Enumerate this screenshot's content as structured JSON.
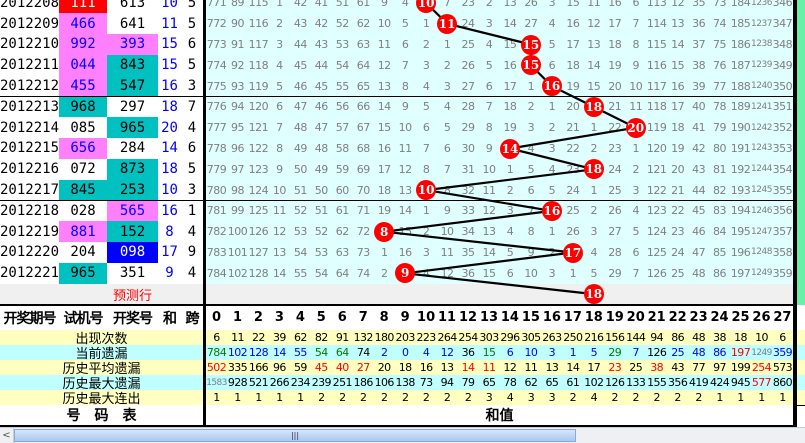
{
  "colors": {
    "red": "#ff0000",
    "pink": "#ff80ff",
    "teal": "#00c0c0",
    "blue": "#0000ff",
    "grid_bg": "#e0ffff",
    "stat_yellow": "#ffffc0",
    "stat_cyan": "#c0ffff",
    "ball": "#ff0000",
    "side_green": "#66f0a8"
  },
  "rows": [
    {
      "period": "2012208",
      "trial": "111",
      "trial_bg": "red",
      "draw": "613",
      "draw_bg": "white",
      "sum": "10",
      "span": "5",
      "grid": [
        "771",
        "89",
        "115",
        "1",
        "42",
        "41",
        "51",
        "61",
        "9",
        "4",
        "B",
        "7",
        "23",
        "2",
        "13",
        "26",
        "3",
        "15",
        "11",
        "16",
        "6",
        "113",
        "12",
        "35",
        "73",
        "184",
        "1236",
        "346"
      ]
    },
    {
      "period": "2012209",
      "trial": "466",
      "trial_bg": "pink",
      "draw": "641",
      "draw_bg": "white",
      "sum": "11",
      "span": "5",
      "grid": [
        "772",
        "90",
        "116",
        "2",
        "43",
        "42",
        "52",
        "62",
        "10",
        "5",
        "1",
        "B",
        "24",
        "3",
        "14",
        "27",
        "4",
        "16",
        "12",
        "17",
        "7",
        "114",
        "13",
        "36",
        "74",
        "185",
        "1237",
        "347"
      ]
    },
    {
      "period": "2012210",
      "trial": "992",
      "trial_bg": "pink",
      "draw": "393",
      "draw_bg": "pink",
      "sum": "15",
      "span": "6",
      "grid": [
        "773",
        "91",
        "117",
        "3",
        "44",
        "43",
        "53",
        "63",
        "11",
        "6",
        "2",
        "1",
        "25",
        "4",
        "15",
        "B",
        "5",
        "17",
        "13",
        "18",
        "8",
        "115",
        "14",
        "37",
        "75",
        "186",
        "1238",
        "348"
      ]
    },
    {
      "period": "2012211",
      "trial": "044",
      "trial_bg": "pink",
      "draw": "843",
      "draw_bg": "teal",
      "sum": "15",
      "span": "5",
      "grid": [
        "774",
        "92",
        "118",
        "4",
        "45",
        "44",
        "54",
        "64",
        "12",
        "7",
        "3",
        "2",
        "26",
        "5",
        "16",
        "B",
        "6",
        "18",
        "14",
        "19",
        "9",
        "116",
        "15",
        "38",
        "76",
        "187",
        "1239",
        "349"
      ]
    },
    {
      "period": "2012212",
      "trial": "455",
      "trial_bg": "pink",
      "draw": "547",
      "draw_bg": "teal",
      "sum": "16",
      "span": "3",
      "grid": [
        "775",
        "93",
        "119",
        "5",
        "46",
        "45",
        "55",
        "65",
        "13",
        "8",
        "4",
        "3",
        "27",
        "6",
        "17",
        "1",
        "B",
        "19",
        "15",
        "20",
        "10",
        "117",
        "16",
        "39",
        "77",
        "188",
        "1240",
        "350"
      ]
    },
    {
      "period": "2012213",
      "trial": "968",
      "trial_bg": "teal",
      "draw": "297",
      "draw_bg": "white",
      "sum": "18",
      "span": "7",
      "grid": [
        "776",
        "94",
        "120",
        "6",
        "47",
        "46",
        "56",
        "66",
        "14",
        "9",
        "5",
        "4",
        "28",
        "7",
        "18",
        "2",
        "1",
        "20",
        "B",
        "21",
        "11",
        "118",
        "17",
        "40",
        "78",
        "189",
        "1241",
        "351"
      ]
    },
    {
      "period": "2012214",
      "trial": "085",
      "trial_bg": "white",
      "draw": "965",
      "draw_bg": "teal",
      "sum": "20",
      "span": "4",
      "grid": [
        "777",
        "95",
        "121",
        "7",
        "48",
        "47",
        "57",
        "67",
        "15",
        "10",
        "6",
        "5",
        "29",
        "8",
        "19",
        "3",
        "2",
        "21",
        "1",
        "22",
        "B",
        "119",
        "18",
        "41",
        "79",
        "190",
        "1242",
        "352"
      ]
    },
    {
      "period": "2012215",
      "trial": "656",
      "trial_bg": "pink",
      "draw": "284",
      "draw_bg": "white",
      "sum": "14",
      "span": "6",
      "grid": [
        "778",
        "96",
        "122",
        "8",
        "49",
        "48",
        "58",
        "68",
        "16",
        "11",
        "7",
        "6",
        "30",
        "9",
        "B",
        "4",
        "3",
        "22",
        "2",
        "23",
        "1",
        "120",
        "19",
        "42",
        "80",
        "191",
        "1243",
        "353"
      ]
    },
    {
      "period": "2012216",
      "trial": "072",
      "trial_bg": "white",
      "draw": "873",
      "draw_bg": "teal",
      "sum": "18",
      "span": "5",
      "grid": [
        "779",
        "97",
        "123",
        "9",
        "50",
        "49",
        "59",
        "69",
        "17",
        "12",
        "8",
        "7",
        "31",
        "10",
        "1",
        "5",
        "4",
        "23",
        "B",
        "24",
        "2",
        "121",
        "20",
        "43",
        "81",
        "192",
        "1244",
        "354"
      ]
    },
    {
      "period": "2012217",
      "trial": "845",
      "trial_bg": "teal",
      "draw": "253",
      "draw_bg": "teal",
      "sum": "10",
      "span": "3",
      "grid": [
        "780",
        "98",
        "124",
        "10",
        "51",
        "50",
        "60",
        "70",
        "18",
        "13",
        "B",
        "8",
        "32",
        "11",
        "2",
        "6",
        "5",
        "24",
        "1",
        "25",
        "3",
        "122",
        "21",
        "44",
        "82",
        "193",
        "1245",
        "355"
      ]
    },
    {
      "period": "2012218",
      "trial": "028",
      "trial_bg": "white",
      "draw": "565",
      "draw_bg": "pink",
      "sum": "16",
      "span": "1",
      "grid": [
        "781",
        "99",
        "125",
        "11",
        "52",
        "51",
        "61",
        "71",
        "19",
        "14",
        "1",
        "9",
        "33",
        "12",
        "3",
        "7",
        "B",
        "25",
        "2",
        "26",
        "4",
        "123",
        "22",
        "45",
        "83",
        "194",
        "1246",
        "356"
      ]
    },
    {
      "period": "2012219",
      "trial": "881",
      "trial_bg": "pink",
      "draw": "152",
      "draw_bg": "teal",
      "sum": "8",
      "span": "4",
      "grid": [
        "782",
        "100",
        "126",
        "12",
        "53",
        "52",
        "62",
        "72",
        "B",
        "15",
        "2",
        "10",
        "34",
        "13",
        "4",
        "8",
        "1",
        "26",
        "3",
        "27",
        "5",
        "124",
        "23",
        "46",
        "84",
        "195",
        "1247",
        "357"
      ]
    },
    {
      "period": "2012220",
      "trial": "204",
      "trial_bg": "white",
      "draw": "098",
      "draw_bg": "blue",
      "sum": "17",
      "span": "9",
      "grid": [
        "783",
        "101",
        "127",
        "13",
        "54",
        "53",
        "63",
        "73",
        "1",
        "16",
        "3",
        "11",
        "35",
        "14",
        "5",
        "9",
        "2",
        "B",
        "4",
        "28",
        "6",
        "125",
        "24",
        "47",
        "85",
        "196",
        "1248",
        "358"
      ]
    },
    {
      "period": "2012221",
      "trial": "965",
      "trial_bg": "teal",
      "draw": "351",
      "draw_bg": "white",
      "sum": "9",
      "span": "4",
      "grid": [
        "784",
        "102",
        "128",
        "14",
        "55",
        "54",
        "64",
        "74",
        "2",
        "B",
        "4",
        "12",
        "36",
        "15",
        "6",
        "10",
        "3",
        "1",
        "5",
        "29",
        "7",
        "126",
        "25",
        "48",
        "86",
        "197",
        "1249",
        "359"
      ]
    }
  ],
  "prediction": {
    "label": "预测行",
    "sum": "18"
  },
  "header": {
    "period": "开奖期号",
    "trial": "试机号",
    "draw": "开奖号",
    "sum": "和",
    "span": "跨",
    "numbers": [
      "0",
      "1",
      "2",
      "3",
      "4",
      "5",
      "6",
      "7",
      "8",
      "9",
      "10",
      "11",
      "12",
      "13",
      "14",
      "15",
      "16",
      "17",
      "18",
      "19",
      "20",
      "21",
      "22",
      "23",
      "24",
      "25",
      "26",
      "27"
    ]
  },
  "stats": [
    {
      "label": "出现次数",
      "bg": "stat_yellow",
      "values": [
        "6",
        "11",
        "22",
        "39",
        "62",
        "82",
        "91",
        "132",
        "180",
        "203",
        "223",
        "264",
        "254",
        "303",
        "296",
        "305",
        "263",
        "250",
        "216",
        "156",
        "144",
        "94",
        "86",
        "48",
        "38",
        "18",
        "10",
        "6"
      ],
      "colors": "kkkkkkkkkkkkkkkkkkkkkkkkkkkk"
    },
    {
      "label": "当前遗漏",
      "bg": "stat_cyan",
      "values": [
        "784",
        "102",
        "128",
        "14",
        "55",
        "54",
        "64",
        "74",
        "2",
        "0",
        "4",
        "12",
        "36",
        "15",
        "6",
        "10",
        "3",
        "1",
        "5",
        "29",
        "7",
        "126",
        "25",
        "48",
        "86",
        "197",
        "1249",
        "359"
      ],
      "colors": "gbbbbggkbbbbkgbbbbbgbkbbbrsb"
    },
    {
      "label": "历史平均遗漏",
      "bg": "stat_yellow",
      "values": [
        "502",
        "335",
        "166",
        "96",
        "59",
        "45",
        "40",
        "27",
        "20",
        "18",
        "16",
        "13",
        "14",
        "11",
        "12",
        "11",
        "13",
        "14",
        "17",
        "23",
        "25",
        "38",
        "43",
        "77",
        "97",
        "199",
        "254",
        "573"
      ],
      "colors": "rkkkkrrrkkkkrrkkkkkrkrkkkkrk"
    },
    {
      "label": "历史最大遗漏",
      "bg": "stat_cyan",
      "values": [
        "1583",
        "928",
        "521",
        "266",
        "234",
        "239",
        "251",
        "186",
        "106",
        "138",
        "73",
        "94",
        "79",
        "65",
        "78",
        "62",
        "65",
        "61",
        "102",
        "126",
        "133",
        "155",
        "356",
        "419",
        "424",
        "945",
        "577",
        "860"
      ],
      "colors": "skkkkkkkkkkkkkkkkkkkkkkkkkrk"
    },
    {
      "label": "历史最大连出",
      "bg": "stat_yellow",
      "values": [
        "1",
        "1",
        "1",
        "1",
        "1",
        "2",
        "2",
        "2",
        "2",
        "2",
        "2",
        "2",
        "2",
        "3",
        "4",
        "3",
        "3",
        "2",
        "4",
        "2",
        "2",
        "2",
        "2",
        "2",
        "1",
        "1",
        "1",
        "1"
      ],
      "colors": "kkkkkkkkkkkkkkkkkkkkkkkkkkkk"
    }
  ],
  "footer": {
    "left": "号　码　表",
    "right": "和值"
  },
  "scrollbar": {
    "left_arrow": "<",
    "grip": "|||"
  }
}
